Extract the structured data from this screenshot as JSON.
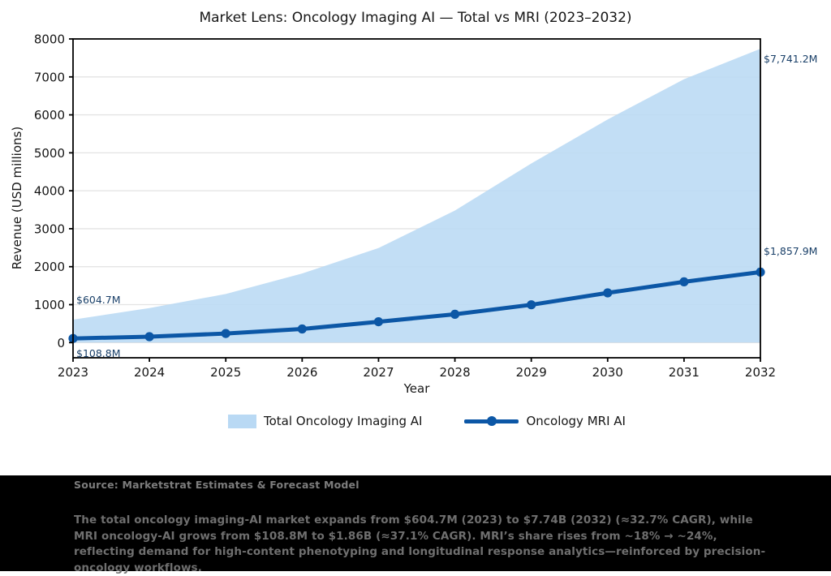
{
  "figure": {
    "title": "Market Lens: Oncology Imaging AI — Total vs MRI (2023–2032)",
    "xlabel": "Year",
    "ylabel": "Revenue (USD millions)"
  },
  "chart_data": {
    "type": "area+line",
    "title": "Market Lens: Oncology Imaging AI — Total vs MRI (2023–2032)",
    "xlabel": "Year",
    "ylabel": "Revenue (USD millions)",
    "x": [
      2023,
      2024,
      2025,
      2026,
      2027,
      2028,
      2029,
      2030,
      2031,
      2032
    ],
    "series": [
      {
        "name": "Total Oncology Imaging AI",
        "type": "area",
        "values": [
          604.7,
          910,
          1280,
          1820,
          2490,
          3480,
          4720,
          5880,
          6940,
          7741.2
        ]
      },
      {
        "name": "Oncology MRI AI",
        "type": "line-marker",
        "values": [
          108.8,
          155,
          240,
          360,
          550,
          745,
          995,
          1310,
          1600,
          1857.9
        ]
      }
    ],
    "ylim": [
      -400,
      8000
    ],
    "yticks": [
      0,
      1000,
      2000,
      3000,
      4000,
      5000,
      6000,
      7000,
      8000
    ],
    "grid": true,
    "legend_position": "below",
    "colors": {
      "area_fill": "#b9d9f4",
      "line": "#0c57a6",
      "annotation_text": "#1a4069",
      "grid_line": "#e3e3e3",
      "axis": "#000000",
      "tick_text": "#161616"
    },
    "annotations": [
      {
        "id": "total_start",
        "text": "$604.7M",
        "x": 94,
        "y": 362
      },
      {
        "id": "mri_start",
        "text": "$108.8M",
        "x": 94,
        "y": 428
      },
      {
        "id": "total_end",
        "text": "$7,741.2M",
        "x": 941,
        "y": 65
      },
      {
        "id": "mri_end",
        "text": "$1,857.9M",
        "x": 941,
        "y": 302
      }
    ]
  },
  "legend": {
    "items": [
      {
        "label": "Total Oncology Imaging AI",
        "swatch": "area-patch"
      },
      {
        "label": "Oncology MRI AI",
        "swatch": "line-with-marker"
      }
    ]
  },
  "footer": {
    "source": "Source: Marketstrat Estimates & Forecast Model",
    "caption": "The total oncology imaging-AI market expands from $604.7M (2023) to $7.74B (2032) (≈32.7% CAGR), while MRI oncology-AI grows from $108.8M to $1.86B (≈37.1% CAGR). MRI’s share rises from ~18% → ~24%, reflecting demand for high-content phenotyping and longitudinal response analytics—reinforced by precision-oncology workflows."
  }
}
